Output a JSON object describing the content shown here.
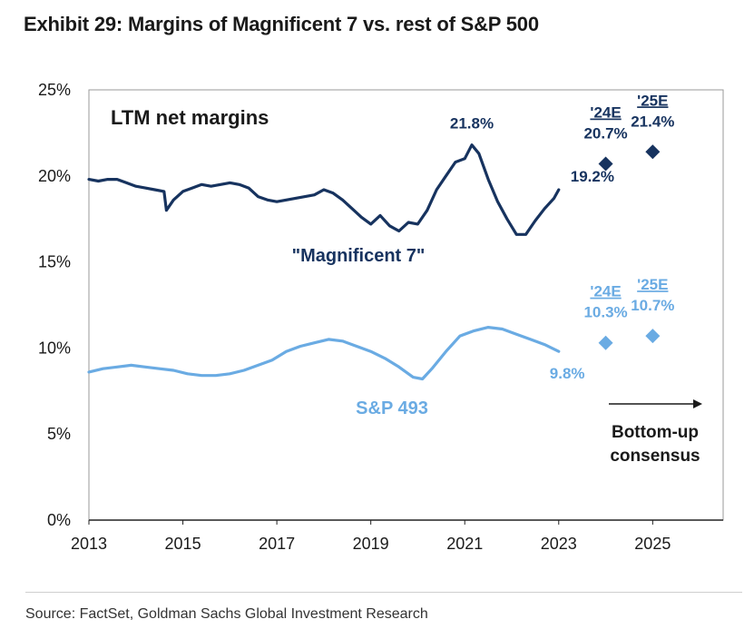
{
  "title": "Exhibit 29: Margins of Magnificent 7 vs. rest of S&P 500",
  "source": "Source: FactSet, Goldman Sachs Global Investment Research",
  "colors": {
    "mag7": "#17335f",
    "sp493": "#6aabe3",
    "axis": "#222222"
  },
  "chart_data": {
    "type": "line",
    "title": "LTM net margins",
    "xlabel": "",
    "ylabel": "",
    "ylim": [
      0,
      25
    ],
    "xlim": [
      2013,
      2026.5
    ],
    "y_tick_labels": [
      "0%",
      "5%",
      "10%",
      "15%",
      "20%",
      "25%"
    ],
    "y_ticks": [
      0,
      5,
      10,
      15,
      20,
      25
    ],
    "x_tick_labels": [
      "2013",
      "2015",
      "2017",
      "2019",
      "2021",
      "2023",
      "2025"
    ],
    "x_ticks": [
      2013,
      2015,
      2017,
      2019,
      2021,
      2023,
      2025
    ],
    "grid": false,
    "series": [
      {
        "name": "\"Magnificent 7\"",
        "x": [
          2013.0,
          2013.2,
          2013.4,
          2013.6,
          2013.8,
          2014.0,
          2014.2,
          2014.4,
          2014.6,
          2014.65,
          2014.8,
          2015.0,
          2015.2,
          2015.4,
          2015.6,
          2015.8,
          2016.0,
          2016.2,
          2016.4,
          2016.6,
          2016.8,
          2017.0,
          2017.2,
          2017.4,
          2017.6,
          2017.8,
          2018.0,
          2018.2,
          2018.4,
          2018.6,
          2018.8,
          2019.0,
          2019.2,
          2019.4,
          2019.6,
          2019.8,
          2020.0,
          2020.2,
          2020.4,
          2020.6,
          2020.8,
          2021.0,
          2021.15,
          2021.3,
          2021.5,
          2021.7,
          2021.9,
          2022.1,
          2022.3,
          2022.5,
          2022.7,
          2022.9,
          2023.0
        ],
        "values": [
          19.8,
          19.7,
          19.8,
          19.8,
          19.6,
          19.4,
          19.3,
          19.2,
          19.1,
          18.0,
          18.6,
          19.1,
          19.3,
          19.5,
          19.4,
          19.5,
          19.6,
          19.5,
          19.3,
          18.8,
          18.6,
          18.5,
          18.6,
          18.7,
          18.8,
          18.9,
          19.2,
          19.0,
          18.6,
          18.1,
          17.6,
          17.2,
          17.7,
          17.1,
          16.8,
          17.3,
          17.2,
          18.0,
          19.2,
          20.0,
          20.8,
          21.0,
          21.8,
          21.3,
          19.8,
          18.5,
          17.5,
          16.6,
          16.6,
          17.4,
          18.1,
          18.7,
          19.2
        ]
      },
      {
        "name": "S&P 493",
        "x": [
          2013.0,
          2013.3,
          2013.6,
          2013.9,
          2014.2,
          2014.5,
          2014.8,
          2015.1,
          2015.4,
          2015.7,
          2016.0,
          2016.3,
          2016.6,
          2016.9,
          2017.2,
          2017.5,
          2017.8,
          2018.1,
          2018.4,
          2018.7,
          2019.0,
          2019.3,
          2019.6,
          2019.9,
          2020.1,
          2020.3,
          2020.6,
          2020.9,
          2021.2,
          2021.5,
          2021.8,
          2022.1,
          2022.4,
          2022.7,
          2023.0
        ],
        "values": [
          8.6,
          8.8,
          8.9,
          9.0,
          8.9,
          8.8,
          8.7,
          8.5,
          8.4,
          8.4,
          8.5,
          8.7,
          9.0,
          9.3,
          9.8,
          10.1,
          10.3,
          10.5,
          10.4,
          10.1,
          9.8,
          9.4,
          8.9,
          8.3,
          8.2,
          8.8,
          9.8,
          10.7,
          11.0,
          11.2,
          11.1,
          10.8,
          10.5,
          10.2,
          9.8
        ]
      }
    ],
    "estimates": [
      {
        "series": "\"Magnificent 7\"",
        "label": "'24E",
        "x": 2024.0,
        "value": 20.7,
        "value_label": "20.7%"
      },
      {
        "series": "\"Magnificent 7\"",
        "label": "'25E",
        "x": 2025.0,
        "value": 21.4,
        "value_label": "21.4%"
      },
      {
        "series": "S&P 493",
        "label": "'24E",
        "x": 2024.0,
        "value": 10.3,
        "value_label": "10.3%"
      },
      {
        "series": "S&P 493",
        "label": "'25E",
        "x": 2025.0,
        "value": 10.7,
        "value_label": "10.7%"
      }
    ],
    "annotations": {
      "panel_title": "LTM net margins",
      "mag7_label": "\"Magnificent 7\"",
      "sp493_label": "S&P 493",
      "mag7_peak": {
        "x": 2021.15,
        "value": 21.8,
        "text": "21.8%"
      },
      "mag7_last": {
        "x": 2023.0,
        "value": 19.2,
        "text": "19.2%"
      },
      "sp493_last": {
        "x": 2023.0,
        "value": 9.8,
        "text": "9.8%"
      },
      "consensus_line1": "Bottom-up",
      "consensus_line2": "consensus"
    }
  }
}
